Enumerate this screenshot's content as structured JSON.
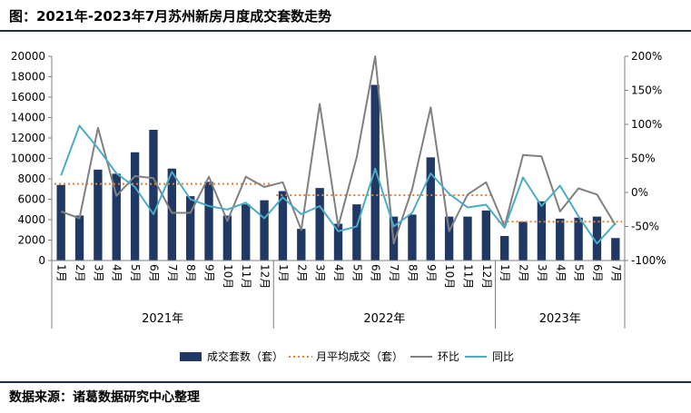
{
  "header": {
    "title": "图：2021年-2023年7月苏州新房月度成交套数走势"
  },
  "footer": {
    "source": "数据来源：诸葛数据研究中心整理"
  },
  "chart_data": {
    "type": "bar",
    "x": [
      "1月",
      "2月",
      "3月",
      "4月",
      "5月",
      "6月",
      "7月",
      "8月",
      "9月",
      "10月",
      "11月",
      "12月",
      "1月",
      "2月",
      "3月",
      "4月",
      "5月",
      "6月",
      "7月",
      "8月",
      "9月",
      "10月",
      "11月",
      "12月",
      "1月",
      "2月",
      "3月",
      "4月",
      "5月",
      "6月",
      "7月"
    ],
    "year_groups": [
      {
        "label": "2021年",
        "count": 12
      },
      {
        "label": "2022年",
        "count": 12
      },
      {
        "label": "2023年",
        "count": 7
      }
    ],
    "left_axis": {
      "ylim": [
        0,
        20000
      ],
      "ticks": [
        "0",
        "2000",
        "4000",
        "6000",
        "8000",
        "10000",
        "12000",
        "14000",
        "16000",
        "18000",
        "20000"
      ]
    },
    "right_axis": {
      "ylim": [
        -100,
        200
      ],
      "ticks": [
        "-100%",
        "-50%",
        "0%",
        "50%",
        "100%",
        "150%",
        "200%"
      ]
    },
    "series": [
      {
        "name": "成交套数（套）",
        "type": "bar",
        "axis": "left",
        "color": "#1f3864",
        "values": [
          7400,
          4400,
          8900,
          8500,
          10600,
          12800,
          9000,
          6300,
          7700,
          4400,
          5500,
          5900,
          6800,
          3100,
          7100,
          3600,
          5500,
          17200,
          4300,
          4500,
          10100,
          4300,
          4300,
          4900,
          2400,
          3800,
          5800,
          4100,
          4200,
          4300,
          2200
        ]
      },
      {
        "name": "月平均成交（套）",
        "type": "step",
        "axis": "left",
        "color": "#ed7d31",
        "segments": [
          {
            "from": 0,
            "to": 11,
            "value": 7500
          },
          {
            "from": 12,
            "to": 23,
            "value": 6400
          },
          {
            "from": 24,
            "to": 30,
            "value": 3800
          }
        ]
      },
      {
        "name": "环比",
        "type": "line",
        "axis": "right",
        "color": "#808080",
        "values": [
          -28,
          -38,
          95,
          -5,
          24,
          21,
          -30,
          -30,
          23,
          -42,
          23,
          8,
          15,
          -55,
          130,
          -50,
          52,
          200,
          -75,
          5,
          125,
          -57,
          -3,
          15,
          -50,
          55,
          53,
          -28,
          6,
          -3,
          -48
        ]
      },
      {
        "name": "同比",
        "type": "line",
        "axis": "right",
        "color": "#4bacc6",
        "values": [
          25,
          98,
          65,
          28,
          8,
          -32,
          30,
          -10,
          -20,
          -25,
          -15,
          -38,
          -7,
          -32,
          -20,
          -57,
          -50,
          35,
          -50,
          -30,
          28,
          -2,
          -22,
          -18,
          -52,
          22,
          -20,
          10,
          -35,
          -75,
          -45
        ]
      }
    ],
    "legend": {
      "position": "bottom"
    }
  }
}
